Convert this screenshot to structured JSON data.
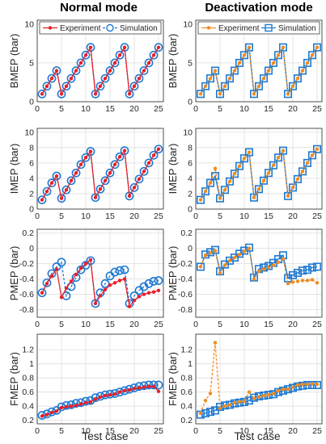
{
  "columns": [
    "Normal mode",
    "Deactivation mode"
  ],
  "xlabel": "Test case",
  "colors": {
    "experiment_normal": "#e8202a",
    "experiment_deact": "#f08c20",
    "simulation": "#1f7ad2",
    "grid": "#dedede",
    "axis": "#262626"
  },
  "chart_data": [
    {
      "id": "bmep-normal",
      "type": "line",
      "column": 0,
      "row": 0,
      "ylabel": "BMEP (bar)",
      "xlim": [
        0,
        26
      ],
      "ylim": [
        0,
        10.5
      ],
      "xticks": [
        0,
        5,
        10,
        15,
        20,
        25
      ],
      "yticks": [
        0,
        5,
        10
      ],
      "legend": {
        "position": "top",
        "entries": [
          "Experiment",
          "Simulation"
        ]
      },
      "x": [
        1,
        2,
        3,
        4,
        5,
        6,
        7,
        8,
        9,
        10,
        11,
        12,
        13,
        14,
        15,
        16,
        17,
        18,
        19,
        20,
        21,
        22,
        23,
        24,
        25
      ],
      "series": [
        {
          "name": "Experiment",
          "marker": "dot",
          "values": [
            1.0,
            2.0,
            3.0,
            4.0,
            1.0,
            2.0,
            3.0,
            4.0,
            5.0,
            6.0,
            7.0,
            1.0,
            2.0,
            3.0,
            4.0,
            5.0,
            6.0,
            7.0,
            1.0,
            2.0,
            3.0,
            4.0,
            5.0,
            6.0,
            7.0
          ]
        },
        {
          "name": "Simulation",
          "marker": "circle",
          "values": [
            1.0,
            2.0,
            3.0,
            4.0,
            1.0,
            2.0,
            3.0,
            4.0,
            5.0,
            6.0,
            7.0,
            1.0,
            2.0,
            3.0,
            4.0,
            5.0,
            6.0,
            7.0,
            1.0,
            2.0,
            3.0,
            4.0,
            5.0,
            6.0,
            7.0
          ]
        }
      ]
    },
    {
      "id": "bmep-deact",
      "type": "line",
      "column": 1,
      "row": 0,
      "ylabel": "BMEP (bar)",
      "xlim": [
        0,
        26
      ],
      "ylim": [
        0,
        10.5
      ],
      "xticks": [
        0,
        5,
        10,
        15,
        20,
        25
      ],
      "yticks": [
        0,
        5,
        10
      ],
      "legend": {
        "position": "top",
        "entries": [
          "Experiment",
          "Simulation"
        ]
      },
      "x": [
        1,
        2,
        3,
        4,
        5,
        6,
        7,
        8,
        9,
        10,
        11,
        12,
        13,
        14,
        15,
        16,
        17,
        18,
        19,
        20,
        21,
        22,
        23,
        24,
        25
      ],
      "series": [
        {
          "name": "Experiment",
          "marker": "dot",
          "values": [
            1.0,
            2.0,
            3.0,
            4.0,
            1.0,
            2.0,
            3.0,
            4.0,
            5.0,
            6.0,
            7.0,
            1.0,
            2.0,
            3.0,
            4.0,
            5.0,
            6.0,
            7.0,
            1.0,
            2.0,
            3.0,
            4.0,
            5.0,
            6.0,
            7.0
          ]
        },
        {
          "name": "Simulation",
          "marker": "square",
          "values": [
            1.0,
            2.0,
            3.0,
            4.0,
            1.0,
            2.0,
            3.0,
            4.0,
            5.0,
            6.0,
            7.0,
            1.0,
            2.0,
            3.0,
            4.0,
            5.0,
            6.0,
            7.0,
            1.0,
            2.0,
            3.0,
            4.0,
            5.0,
            6.0,
            7.0
          ]
        }
      ]
    },
    {
      "id": "imep-normal",
      "type": "line",
      "column": 0,
      "row": 1,
      "ylabel": "IMEP (bar)",
      "xlim": [
        0,
        26
      ],
      "ylim": [
        0,
        10.5
      ],
      "xticks": [
        0,
        5,
        10,
        15,
        20,
        25
      ],
      "yticks": [
        0,
        2,
        4,
        6,
        8,
        10
      ],
      "x": [
        1,
        2,
        3,
        4,
        5,
        6,
        7,
        8,
        9,
        10,
        11,
        12,
        13,
        14,
        15,
        16,
        17,
        18,
        19,
        20,
        21,
        22,
        23,
        24,
        25
      ],
      "series": [
        {
          "name": "Experiment",
          "marker": "dot",
          "values": [
            1.2,
            2.3,
            3.4,
            4.3,
            1.4,
            2.5,
            3.7,
            4.7,
            5.8,
            6.7,
            7.5,
            1.5,
            2.6,
            3.7,
            4.7,
            5.8,
            6.8,
            7.6,
            1.7,
            2.8,
            3.9,
            4.9,
            6.0,
            7.0,
            7.8
          ]
        },
        {
          "name": "Simulation",
          "marker": "circle",
          "values": [
            1.2,
            2.3,
            3.4,
            4.3,
            1.4,
            2.5,
            3.7,
            4.7,
            5.8,
            6.7,
            7.5,
            1.5,
            2.6,
            3.7,
            4.7,
            5.8,
            6.8,
            7.6,
            1.7,
            2.8,
            3.9,
            4.9,
            6.0,
            7.0,
            7.8
          ]
        }
      ]
    },
    {
      "id": "imep-deact",
      "type": "line",
      "column": 1,
      "row": 1,
      "ylabel": "IMEP (bar)",
      "xlim": [
        0,
        26
      ],
      "ylim": [
        0,
        10.5
      ],
      "xticks": [
        0,
        5,
        10,
        15,
        20,
        25
      ],
      "yticks": [
        0,
        2,
        4,
        6,
        8,
        10
      ],
      "x": [
        1,
        2,
        3,
        4,
        5,
        6,
        7,
        8,
        9,
        10,
        11,
        12,
        13,
        14,
        15,
        16,
        17,
        18,
        19,
        20,
        21,
        22,
        23,
        24,
        25
      ],
      "series": [
        {
          "name": "Experiment",
          "marker": "dot",
          "values": [
            1.2,
            2.3,
            3.4,
            5.3,
            1.4,
            2.5,
            3.6,
            4.6,
            5.6,
            6.6,
            7.4,
            1.5,
            2.6,
            3.7,
            4.7,
            5.7,
            6.7,
            7.6,
            1.7,
            2.8,
            3.9,
            4.9,
            6.0,
            7.0,
            7.8
          ]
        },
        {
          "name": "Simulation",
          "marker": "square",
          "values": [
            1.2,
            2.3,
            3.4,
            4.3,
            1.4,
            2.5,
            3.6,
            4.6,
            5.6,
            6.6,
            7.4,
            1.5,
            2.6,
            3.7,
            4.7,
            5.7,
            6.7,
            7.6,
            1.7,
            2.8,
            3.9,
            4.9,
            6.0,
            7.0,
            7.8
          ]
        }
      ]
    },
    {
      "id": "pmep-normal",
      "type": "line",
      "column": 0,
      "row": 2,
      "ylabel": "PMEP (bar)",
      "xlim": [
        0,
        26
      ],
      "ylim": [
        -0.9,
        0.25
      ],
      "xticks": [
        0,
        5,
        10,
        15,
        20,
        25
      ],
      "yticks": [
        0.2,
        0,
        -0.2,
        -0.4,
        -0.6,
        -0.8
      ],
      "x": [
        1,
        2,
        3,
        4,
        5,
        6,
        7,
        8,
        9,
        10,
        11,
        12,
        13,
        14,
        15,
        16,
        17,
        18,
        19,
        20,
        21,
        22,
        23,
        24,
        25
      ],
      "series": [
        {
          "name": "Experiment",
          "marker": "dot",
          "values": [
            -0.58,
            -0.46,
            -0.36,
            -0.27,
            -0.64,
            -0.52,
            -0.43,
            -0.34,
            -0.26,
            -0.2,
            -0.15,
            -0.72,
            -0.62,
            -0.54,
            -0.48,
            -0.45,
            -0.42,
            -0.4,
            -0.76,
            -0.68,
            -0.63,
            -0.6,
            -0.58,
            -0.57,
            -0.55
          ]
        },
        {
          "name": "Simulation",
          "marker": "circle",
          "values": [
            -0.58,
            -0.45,
            -0.33,
            -0.24,
            -0.18,
            -0.62,
            -0.5,
            -0.38,
            -0.28,
            -0.22,
            -0.16,
            -0.72,
            -0.58,
            -0.46,
            -0.36,
            -0.31,
            -0.29,
            -0.28,
            -0.72,
            -0.62,
            -0.55,
            -0.5,
            -0.46,
            -0.43,
            -0.42
          ]
        }
      ]
    },
    {
      "id": "pmep-deact",
      "type": "line",
      "column": 1,
      "row": 2,
      "ylabel": "PMEP (bar)",
      "xlim": [
        0,
        26
      ],
      "ylim": [
        -0.9,
        0.25
      ],
      "xticks": [
        0,
        5,
        10,
        15,
        20,
        25
      ],
      "yticks": [
        0.2,
        0,
        -0.2,
        -0.4,
        -0.6,
        -0.8
      ],
      "x": [
        1,
        2,
        3,
        4,
        5,
        6,
        7,
        8,
        9,
        10,
        11,
        12,
        13,
        14,
        15,
        16,
        17,
        18,
        19,
        20,
        21,
        22,
        23,
        24,
        25
      ],
      "series": [
        {
          "name": "Experiment",
          "marker": "dot",
          "values": [
            -0.24,
            -0.09,
            -0.06,
            -0.03,
            -0.32,
            -0.22,
            -0.16,
            -0.12,
            -0.08,
            -0.04,
            0.0,
            -0.4,
            -0.3,
            -0.27,
            -0.25,
            -0.22,
            -0.18,
            -0.14,
            -0.46,
            -0.44,
            -0.43,
            -0.42,
            -0.42,
            -0.41,
            -0.45
          ]
        },
        {
          "name": "Simulation",
          "marker": "square",
          "values": [
            -0.24,
            -0.08,
            -0.05,
            -0.02,
            -0.3,
            -0.21,
            -0.16,
            -0.12,
            -0.07,
            -0.03,
            0.01,
            -0.38,
            -0.27,
            -0.25,
            -0.23,
            -0.19,
            -0.14,
            -0.09,
            -0.39,
            -0.35,
            -0.32,
            -0.29,
            -0.28,
            -0.25,
            -0.24
          ]
        }
      ]
    },
    {
      "id": "fmep-normal",
      "type": "line",
      "column": 0,
      "row": 3,
      "ylabel": "FMEP (bar)",
      "xlim": [
        0,
        26
      ],
      "ylim": [
        0.15,
        1.42
      ],
      "xticks": [
        0,
        5,
        10,
        15,
        20,
        25
      ],
      "yticks": [
        0.2,
        0.4,
        0.6,
        0.8,
        1.0,
        1.2
      ],
      "x": [
        1,
        2,
        3,
        4,
        5,
        6,
        7,
        8,
        9,
        10,
        11,
        12,
        13,
        14,
        15,
        16,
        17,
        18,
        19,
        20,
        21,
        22,
        23,
        24,
        25
      ],
      "series": [
        {
          "name": "Experiment",
          "marker": "dot",
          "values": [
            0.26,
            0.28,
            0.31,
            0.33,
            0.38,
            0.39,
            0.4,
            0.41,
            0.43,
            0.45,
            0.46,
            0.5,
            0.53,
            0.55,
            0.56,
            0.57,
            0.6,
            0.62,
            0.63,
            0.65,
            0.66,
            0.67,
            0.68,
            0.68,
            0.61
          ]
        },
        {
          "name": "Simulation",
          "marker": "circle",
          "values": [
            0.27,
            0.29,
            0.32,
            0.34,
            0.39,
            0.41,
            0.42,
            0.44,
            0.45,
            0.47,
            0.48,
            0.52,
            0.54,
            0.56,
            0.57,
            0.58,
            0.6,
            0.62,
            0.64,
            0.66,
            0.68,
            0.69,
            0.7,
            0.7,
            0.7
          ]
        }
      ]
    },
    {
      "id": "fmep-deact",
      "type": "line",
      "column": 1,
      "row": 3,
      "ylabel": "FMEP (bar)",
      "xlim": [
        0,
        26
      ],
      "ylim": [
        0.15,
        1.42
      ],
      "xticks": [
        0,
        5,
        10,
        15,
        20,
        25
      ],
      "yticks": [
        0.2,
        0.4,
        0.6,
        0.8,
        1.0,
        1.2
      ],
      "x": [
        1,
        2,
        3,
        4,
        5,
        6,
        7,
        8,
        9,
        10,
        11,
        12,
        13,
        14,
        15,
        16,
        17,
        18,
        19,
        20,
        21,
        22,
        23,
        24,
        25
      ],
      "series": [
        {
          "name": "Experiment",
          "marker": "dot",
          "values": [
            0.3,
            0.48,
            0.58,
            1.3,
            0.37,
            0.4,
            0.42,
            0.45,
            0.46,
            0.47,
            0.6,
            0.51,
            0.53,
            0.55,
            0.56,
            0.58,
            0.62,
            0.64,
            0.64,
            0.67,
            0.7,
            0.71,
            0.71,
            0.72,
            0.71
          ]
        },
        {
          "name": "Simulation",
          "marker": "square",
          "values": [
            0.28,
            0.3,
            0.32,
            0.34,
            0.39,
            0.41,
            0.42,
            0.44,
            0.45,
            0.46,
            0.48,
            0.52,
            0.54,
            0.55,
            0.56,
            0.57,
            0.6,
            0.62,
            0.64,
            0.66,
            0.68,
            0.69,
            0.7,
            0.7,
            0.7
          ]
        }
      ]
    }
  ]
}
